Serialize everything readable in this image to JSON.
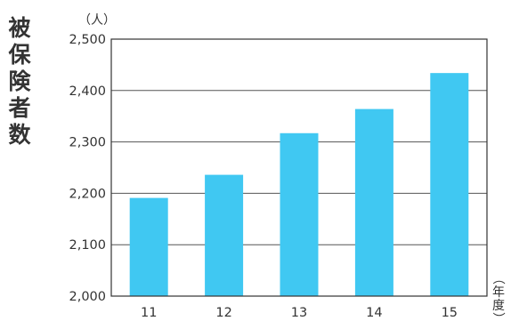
{
  "chart_data": {
    "type": "bar",
    "title": "被保険者数",
    "y_unit": "（人）",
    "x_unit": "（年度）",
    "categories": [
      "11",
      "12",
      "13",
      "14",
      "15"
    ],
    "values": [
      2191,
      2236,
      2317,
      2364,
      2434
    ],
    "ylim": [
      2000,
      2500
    ],
    "yticks": [
      "2,000",
      "2,100",
      "2,200",
      "2,300",
      "2,400",
      "2,500"
    ],
    "ytick_values": [
      2000,
      2100,
      2200,
      2300,
      2400,
      2500
    ],
    "grid": true,
    "bar_color": "#40c8f2",
    "grid_color": "#555555"
  }
}
